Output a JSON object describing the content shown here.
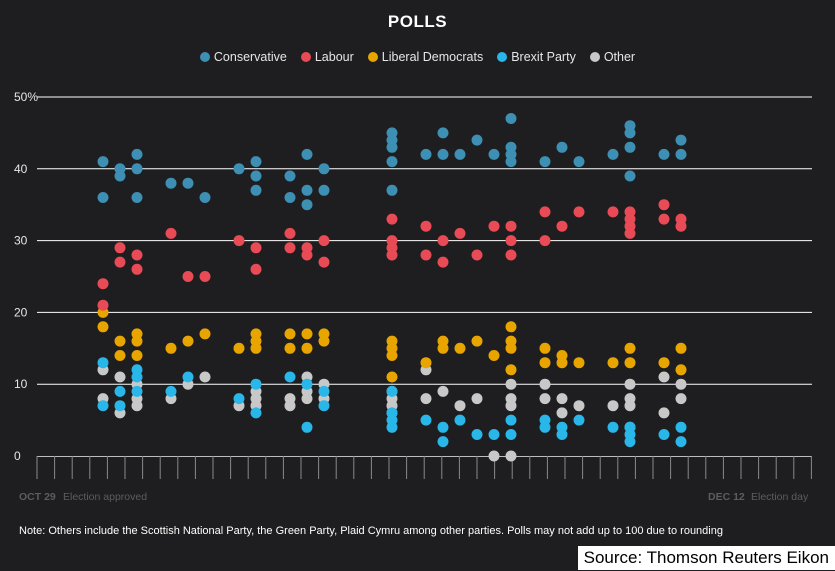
{
  "title": "POLLS",
  "legend": [
    {
      "name": "Conservative",
      "color": "#3d8fb3"
    },
    {
      "name": "Labour",
      "color": "#e84b55"
    },
    {
      "name": "Liberal Democrats",
      "color": "#e8a500"
    },
    {
      "name": "Brexit Party",
      "color": "#29b6e8"
    },
    {
      "name": "Other",
      "color": "#c8c8c8"
    }
  ],
  "x_axis": {
    "start_label": "OCT 29",
    "start_note": "Election approved",
    "end_label": "DEC 12",
    "end_note": "Election day"
  },
  "note": "Note: Others include the Scottish National Party, the Green Party, Plaid Cymru among other parties. Polls may not add up to 100 due to rounding",
  "source": "Source: Thomson Reuters Eikon",
  "chart_data": {
    "type": "scatter",
    "title": "POLLS",
    "xlabel": "",
    "ylabel": "",
    "x_range": [
      "2019-10-29",
      "2019-12-12"
    ],
    "ylim": [
      0,
      50
    ],
    "yticks": [
      "0",
      "10",
      "20",
      "30",
      "40",
      "50%"
    ],
    "grid": true,
    "legend_position": "top-center",
    "series": [
      {
        "name": "Conservative",
        "color": "#3d8fb3",
        "points": [
          [
            "2019-11-01",
            41
          ],
          [
            "2019-11-01",
            36
          ],
          [
            "2019-11-02",
            40
          ],
          [
            "2019-11-02",
            39
          ],
          [
            "2019-11-03",
            42
          ],
          [
            "2019-11-03",
            40
          ],
          [
            "2019-11-03",
            36
          ],
          [
            "2019-11-05",
            38
          ],
          [
            "2019-11-06",
            38
          ],
          [
            "2019-11-07",
            36
          ],
          [
            "2019-11-09",
            40
          ],
          [
            "2019-11-10",
            41
          ],
          [
            "2019-11-10",
            39
          ],
          [
            "2019-11-10",
            37
          ],
          [
            "2019-11-12",
            39
          ],
          [
            "2019-11-12",
            36
          ],
          [
            "2019-11-13",
            42
          ],
          [
            "2019-11-13",
            37
          ],
          [
            "2019-11-13",
            35
          ],
          [
            "2019-11-14",
            40
          ],
          [
            "2019-11-14",
            37
          ],
          [
            "2019-11-18",
            45
          ],
          [
            "2019-11-18",
            44
          ],
          [
            "2019-11-18",
            43
          ],
          [
            "2019-11-18",
            41
          ],
          [
            "2019-11-18",
            37
          ],
          [
            "2019-11-20",
            42
          ],
          [
            "2019-11-21",
            45
          ],
          [
            "2019-11-21",
            42
          ],
          [
            "2019-11-22",
            42
          ],
          [
            "2019-11-23",
            44
          ],
          [
            "2019-11-24",
            42
          ],
          [
            "2019-11-25",
            47
          ],
          [
            "2019-11-25",
            43
          ],
          [
            "2019-11-25",
            42
          ],
          [
            "2019-11-25",
            41
          ],
          [
            "2019-11-27",
            41
          ],
          [
            "2019-11-28",
            43
          ],
          [
            "2019-11-29",
            41
          ],
          [
            "2019-12-01",
            42
          ],
          [
            "2019-12-02",
            46
          ],
          [
            "2019-12-02",
            45
          ],
          [
            "2019-12-02",
            43
          ],
          [
            "2019-12-02",
            39
          ],
          [
            "2019-12-04",
            42
          ],
          [
            "2019-12-05",
            44
          ],
          [
            "2019-12-05",
            42
          ]
        ]
      },
      {
        "name": "Labour",
        "color": "#e84b55",
        "points": [
          [
            "2019-11-01",
            24
          ],
          [
            "2019-11-01",
            21
          ],
          [
            "2019-11-02",
            29
          ],
          [
            "2019-11-02",
            27
          ],
          [
            "2019-11-03",
            28
          ],
          [
            "2019-11-03",
            26
          ],
          [
            "2019-11-05",
            31
          ],
          [
            "2019-11-06",
            25
          ],
          [
            "2019-11-07",
            25
          ],
          [
            "2019-11-09",
            30
          ],
          [
            "2019-11-10",
            29
          ],
          [
            "2019-11-10",
            26
          ],
          [
            "2019-11-12",
            31
          ],
          [
            "2019-11-12",
            29
          ],
          [
            "2019-11-13",
            29
          ],
          [
            "2019-11-13",
            28
          ],
          [
            "2019-11-14",
            30
          ],
          [
            "2019-11-14",
            27
          ],
          [
            "2019-11-18",
            33
          ],
          [
            "2019-11-18",
            30
          ],
          [
            "2019-11-18",
            29
          ],
          [
            "2019-11-18",
            28
          ],
          [
            "2019-11-20",
            32
          ],
          [
            "2019-11-20",
            28
          ],
          [
            "2019-11-21",
            30
          ],
          [
            "2019-11-21",
            27
          ],
          [
            "2019-11-22",
            31
          ],
          [
            "2019-11-23",
            28
          ],
          [
            "2019-11-24",
            32
          ],
          [
            "2019-11-25",
            32
          ],
          [
            "2019-11-25",
            30
          ],
          [
            "2019-11-25",
            28
          ],
          [
            "2019-11-27",
            34
          ],
          [
            "2019-11-27",
            30
          ],
          [
            "2019-11-28",
            32
          ],
          [
            "2019-11-29",
            34
          ],
          [
            "2019-12-01",
            34
          ],
          [
            "2019-12-02",
            34
          ],
          [
            "2019-12-02",
            33
          ],
          [
            "2019-12-02",
            32
          ],
          [
            "2019-12-02",
            31
          ],
          [
            "2019-12-04",
            35
          ],
          [
            "2019-12-04",
            33
          ],
          [
            "2019-12-05",
            33
          ],
          [
            "2019-12-05",
            32
          ]
        ]
      },
      {
        "name": "Liberal Democrats",
        "color": "#e8a500",
        "points": [
          [
            "2019-11-01",
            20
          ],
          [
            "2019-11-01",
            18
          ],
          [
            "2019-11-02",
            16
          ],
          [
            "2019-11-02",
            14
          ],
          [
            "2019-11-03",
            17
          ],
          [
            "2019-11-03",
            16
          ],
          [
            "2019-11-03",
            14
          ],
          [
            "2019-11-05",
            15
          ],
          [
            "2019-11-06",
            16
          ],
          [
            "2019-11-07",
            17
          ],
          [
            "2019-11-09",
            15
          ],
          [
            "2019-11-10",
            17
          ],
          [
            "2019-11-10",
            16
          ],
          [
            "2019-11-10",
            15
          ],
          [
            "2019-11-12",
            17
          ],
          [
            "2019-11-12",
            15
          ],
          [
            "2019-11-13",
            17
          ],
          [
            "2019-11-13",
            15
          ],
          [
            "2019-11-14",
            17
          ],
          [
            "2019-11-14",
            16
          ],
          [
            "2019-11-18",
            16
          ],
          [
            "2019-11-18",
            15
          ],
          [
            "2019-11-18",
            14
          ],
          [
            "2019-11-18",
            11
          ],
          [
            "2019-11-20",
            13
          ],
          [
            "2019-11-21",
            16
          ],
          [
            "2019-11-21",
            15
          ],
          [
            "2019-11-22",
            15
          ],
          [
            "2019-11-23",
            16
          ],
          [
            "2019-11-24",
            14
          ],
          [
            "2019-11-25",
            18
          ],
          [
            "2019-11-25",
            16
          ],
          [
            "2019-11-25",
            15
          ],
          [
            "2019-11-25",
            12
          ],
          [
            "2019-11-27",
            15
          ],
          [
            "2019-11-27",
            13
          ],
          [
            "2019-11-28",
            14
          ],
          [
            "2019-11-28",
            13
          ],
          [
            "2019-11-29",
            13
          ],
          [
            "2019-12-01",
            13
          ],
          [
            "2019-12-02",
            15
          ],
          [
            "2019-12-02",
            13
          ],
          [
            "2019-12-04",
            13
          ],
          [
            "2019-12-05",
            15
          ],
          [
            "2019-12-05",
            12
          ]
        ]
      },
      {
        "name": "Brexit Party",
        "color": "#29b6e8",
        "points": [
          [
            "2019-11-01",
            13
          ],
          [
            "2019-11-01",
            7
          ],
          [
            "2019-11-02",
            9
          ],
          [
            "2019-11-02",
            7
          ],
          [
            "2019-11-03",
            12
          ],
          [
            "2019-11-03",
            11
          ],
          [
            "2019-11-03",
            9
          ],
          [
            "2019-11-05",
            9
          ],
          [
            "2019-11-06",
            11
          ],
          [
            "2019-11-09",
            8
          ],
          [
            "2019-11-10",
            10
          ],
          [
            "2019-11-10",
            6
          ],
          [
            "2019-11-12",
            11
          ],
          [
            "2019-11-13",
            10
          ],
          [
            "2019-11-13",
            4
          ],
          [
            "2019-11-14",
            9
          ],
          [
            "2019-11-14",
            7
          ],
          [
            "2019-11-18",
            9
          ],
          [
            "2019-11-18",
            6
          ],
          [
            "2019-11-18",
            5
          ],
          [
            "2019-11-18",
            4
          ],
          [
            "2019-11-20",
            5
          ],
          [
            "2019-11-21",
            4
          ],
          [
            "2019-11-21",
            2
          ],
          [
            "2019-11-22",
            5
          ],
          [
            "2019-11-23",
            3
          ],
          [
            "2019-11-24",
            3
          ],
          [
            "2019-11-25",
            5
          ],
          [
            "2019-11-25",
            3
          ],
          [
            "2019-11-27",
            5
          ],
          [
            "2019-11-27",
            4
          ],
          [
            "2019-11-28",
            4
          ],
          [
            "2019-11-28",
            3
          ],
          [
            "2019-11-29",
            5
          ],
          [
            "2019-12-01",
            4
          ],
          [
            "2019-12-02",
            4
          ],
          [
            "2019-12-02",
            3
          ],
          [
            "2019-12-02",
            2
          ],
          [
            "2019-12-04",
            3
          ],
          [
            "2019-12-05",
            4
          ],
          [
            "2019-12-05",
            2
          ]
        ]
      },
      {
        "name": "Other",
        "color": "#c8c8c8",
        "points": [
          [
            "2019-11-01",
            12
          ],
          [
            "2019-11-01",
            8
          ],
          [
            "2019-11-02",
            11
          ],
          [
            "2019-11-02",
            6
          ],
          [
            "2019-11-03",
            10
          ],
          [
            "2019-11-03",
            8
          ],
          [
            "2019-11-03",
            7
          ],
          [
            "2019-11-05",
            8
          ],
          [
            "2019-11-06",
            10
          ],
          [
            "2019-11-07",
            11
          ],
          [
            "2019-11-09",
            7
          ],
          [
            "2019-11-10",
            9
          ],
          [
            "2019-11-10",
            8
          ],
          [
            "2019-11-10",
            7
          ],
          [
            "2019-11-12",
            8
          ],
          [
            "2019-11-12",
            7
          ],
          [
            "2019-11-13",
            11
          ],
          [
            "2019-11-13",
            9
          ],
          [
            "2019-11-13",
            8
          ],
          [
            "2019-11-14",
            10
          ],
          [
            "2019-11-14",
            8
          ],
          [
            "2019-11-18",
            9
          ],
          [
            "2019-11-18",
            8
          ],
          [
            "2019-11-18",
            7
          ],
          [
            "2019-11-18",
            6
          ],
          [
            "2019-11-20",
            12
          ],
          [
            "2019-11-20",
            8
          ],
          [
            "2019-11-21",
            9
          ],
          [
            "2019-11-22",
            7
          ],
          [
            "2019-11-23",
            8
          ],
          [
            "2019-11-24",
            0
          ],
          [
            "2019-11-25",
            10
          ],
          [
            "2019-11-25",
            8
          ],
          [
            "2019-11-25",
            7
          ],
          [
            "2019-11-25",
            0
          ],
          [
            "2019-11-27",
            10
          ],
          [
            "2019-11-27",
            8
          ],
          [
            "2019-11-28",
            8
          ],
          [
            "2019-11-28",
            6
          ],
          [
            "2019-11-29",
            7
          ],
          [
            "2019-12-01",
            7
          ],
          [
            "2019-12-02",
            10
          ],
          [
            "2019-12-02",
            8
          ],
          [
            "2019-12-02",
            7
          ],
          [
            "2019-12-02",
            4
          ],
          [
            "2019-12-04",
            11
          ],
          [
            "2019-12-04",
            6
          ],
          [
            "2019-12-05",
            10
          ],
          [
            "2019-12-05",
            8
          ]
        ]
      }
    ]
  }
}
